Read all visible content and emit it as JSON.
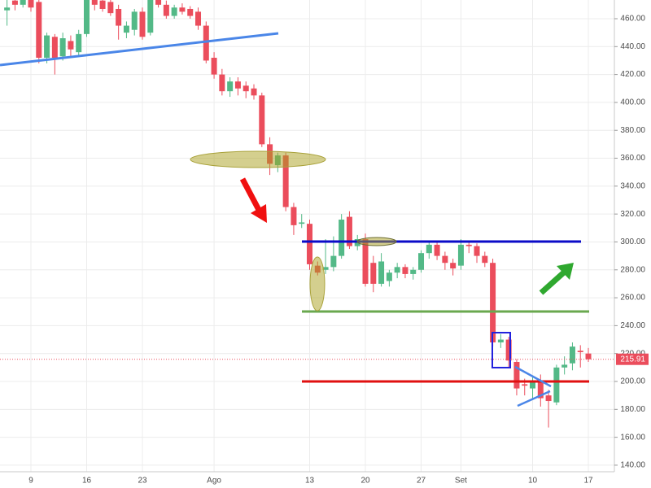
{
  "chart_data": {
    "type": "candlestick",
    "categories": [
      null,
      null,
      null,
      "9",
      null,
      null,
      null,
      null,
      null,
      null,
      "16",
      null,
      null,
      null,
      null,
      null,
      null,
      "23",
      null,
      null,
      null,
      null,
      null,
      null,
      null,
      null,
      "Ago",
      null,
      null,
      null,
      null,
      null,
      null,
      null,
      null,
      null,
      null,
      null,
      "13",
      null,
      null,
      null,
      null,
      null,
      null,
      "20",
      null,
      null,
      null,
      null,
      null,
      null,
      "27",
      null,
      null,
      null,
      null,
      "Set",
      null,
      null,
      null,
      null,
      null,
      null,
      null,
      null,
      "10",
      null,
      null,
      null,
      null,
      null,
      null,
      "17"
    ],
    "open": [
      466,
      473,
      470,
      474,
      472,
      432,
      447,
      433,
      444,
      436,
      449,
      476,
      473,
      472,
      467,
      450,
      452,
      465,
      450,
      477,
      470,
      462,
      468,
      467,
      465,
      455,
      432,
      420,
      408,
      415,
      412,
      410,
      405,
      370,
      355,
      362,
      325,
      313,
      313,
      283,
      280,
      282,
      290,
      318,
      297,
      302,
      285,
      270,
      272,
      278,
      282,
      277,
      280,
      292,
      298,
      290,
      285,
      283,
      298,
      297,
      290,
      285,
      228,
      230,
      214,
      198,
      195,
      200,
      190,
      185,
      210,
      213,
      222,
      220
    ],
    "high": [
      475,
      476,
      477,
      478,
      476,
      450,
      449,
      450,
      448,
      452,
      479,
      478,
      476,
      474,
      470,
      458,
      467,
      468,
      479,
      480,
      473,
      470,
      471,
      469,
      468,
      458,
      436,
      424,
      418,
      418,
      415,
      413,
      407,
      375,
      364,
      364,
      328,
      320,
      316,
      286,
      302,
      304,
      320,
      322,
      305,
      306,
      290,
      292,
      280,
      285,
      284,
      282,
      294,
      300,
      300,
      293,
      288,
      302,
      300,
      299,
      293,
      288,
      234,
      232,
      216,
      202,
      203,
      205,
      194,
      212,
      218,
      228,
      226,
      224
    ],
    "low": [
      455,
      466,
      468,
      465,
      428,
      428,
      420,
      430,
      432,
      433,
      447,
      466,
      465,
      462,
      445,
      446,
      448,
      445,
      448,
      468,
      460,
      460,
      463,
      460,
      452,
      428,
      417,
      405,
      404,
      405,
      403,
      402,
      368,
      348,
      350,
      322,
      305,
      310,
      280,
      276,
      277,
      279,
      288,
      295,
      294,
      268,
      264,
      268,
      268,
      274,
      274,
      273,
      278,
      288,
      287,
      280,
      276,
      280,
      292,
      285,
      282,
      225,
      224,
      210,
      190,
      190,
      188,
      182,
      167,
      183,
      205,
      208,
      210,
      214
    ],
    "close": [
      468,
      470,
      474,
      468,
      432,
      448,
      432,
      446,
      438,
      449,
      476,
      470,
      467,
      464,
      455,
      455,
      465,
      447,
      477,
      470,
      462,
      468,
      465,
      462,
      455,
      430,
      420,
      408,
      415,
      410,
      408,
      405,
      370,
      356,
      362,
      325,
      312,
      314,
      284,
      278,
      282,
      290,
      316,
      297,
      302,
      270,
      270,
      286,
      278,
      282,
      277,
      280,
      292,
      298,
      290,
      285,
      281,
      298,
      297,
      290,
      285,
      228,
      230,
      215,
      195,
      197,
      200,
      188,
      186,
      210,
      212,
      225,
      221,
      215.91
    ],
    "up_color": "#53b987",
    "down_color": "#eb4d5c",
    "last_price": 215.91,
    "ylim": [
      135.3,
      473.4
    ],
    "yticks": [
      {
        "value": 140,
        "label": "140.00"
      },
      {
        "value": 160,
        "label": "160.00"
      },
      {
        "value": 180,
        "label": "180.00"
      },
      {
        "value": 200,
        "label": "200.00"
      },
      {
        "value": 220,
        "label": "220.00"
      },
      {
        "value": 240,
        "label": "240.00"
      },
      {
        "value": 260,
        "label": "260.00"
      },
      {
        "value": 280,
        "label": "280.00"
      },
      {
        "value": 300,
        "label": "300.00"
      },
      {
        "value": 320,
        "label": "320.00"
      },
      {
        "value": 340,
        "label": "340.00"
      },
      {
        "value": 360,
        "label": "360.00"
      },
      {
        "value": 380,
        "label": "380.00"
      },
      {
        "value": 400,
        "label": "400.00"
      },
      {
        "value": 420,
        "label": "420.00"
      },
      {
        "value": 440,
        "label": "440.00"
      },
      {
        "value": 460,
        "label": "460.00"
      }
    ],
    "grid": true
  }
}
